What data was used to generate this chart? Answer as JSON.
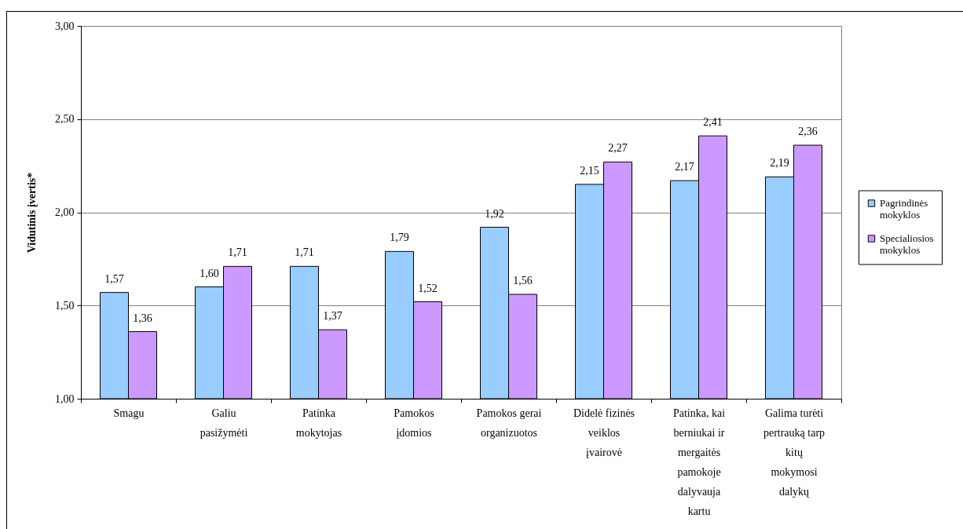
{
  "chart_data": {
    "type": "bar",
    "ylabel": "Vidutinis įvertis*",
    "categories": [
      "Smagu",
      "Galiu pasižymėti",
      "Patinka mokytojas",
      "Pamokos įdomios",
      "Pamokos gerai organizuotos",
      "Didelė fizinės veiklos įvairovė",
      "Patinka, kai berniukai ir mergaitės pamokoje dalyvauja kartu",
      "Galima turėti pertrauką tarp kitų mokymosi dalykų"
    ],
    "series": [
      {
        "name": "Pagrindinės mokyklos",
        "color": "#99ccff",
        "values": [
          1.57,
          1.6,
          1.71,
          1.79,
          1.92,
          2.15,
          2.17,
          2.19
        ],
        "value_labels": [
          "1,57",
          "1,60",
          "1,71",
          "1,79",
          "1,92",
          "2,15",
          "2,17",
          "2,19"
        ]
      },
      {
        "name": "Specialiosios mokyklos",
        "color": "#cc99ff",
        "values": [
          1.36,
          1.71,
          1.37,
          1.52,
          1.56,
          2.27,
          2.41,
          2.36
        ],
        "value_labels": [
          "1,36",
          "1,71",
          "1,37",
          "1,52",
          "1,56",
          "2,27",
          "2,41",
          "2,36"
        ]
      }
    ],
    "ylim": [
      1,
      3
    ],
    "yticks": [
      {
        "value": 1,
        "label": "1,00"
      },
      {
        "value": 1.5,
        "label": "1,50"
      },
      {
        "value": 2,
        "label": "2,00"
      },
      {
        "value": 2.5,
        "label": "2,50"
      },
      {
        "value": 3,
        "label": "3,00"
      }
    ],
    "grid": "y",
    "legend": "right"
  }
}
